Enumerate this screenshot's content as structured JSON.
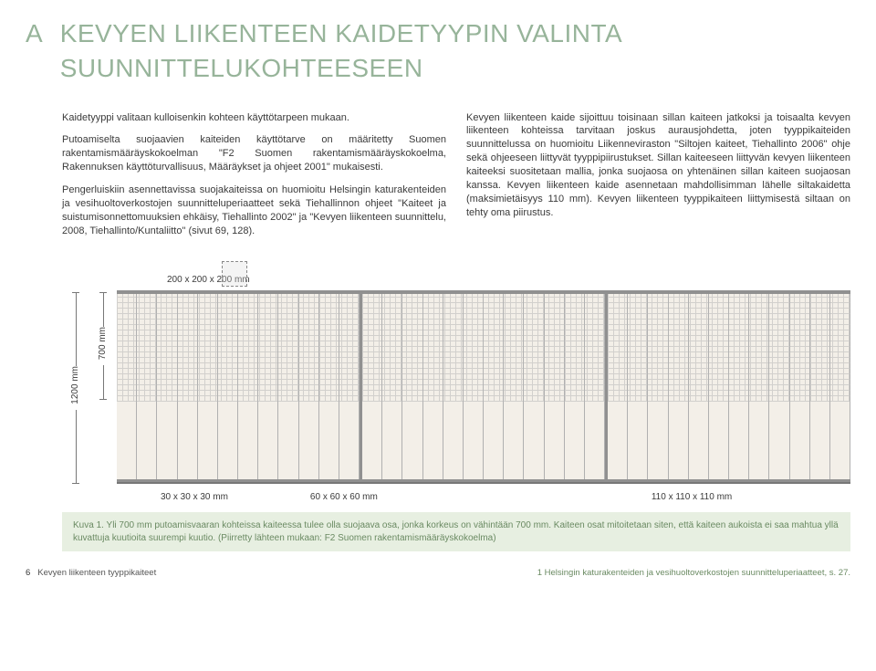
{
  "header": {
    "section_letter": "A",
    "title": "KEVYEN LIIKENTEEN KAIDETYYPIN VALINTA SUUNNITTELUKOHTEESEEN"
  },
  "body": {
    "left": {
      "p1": "Kaidetyyppi valitaan kulloisenkin kohteen käyttötarpeen mukaan.",
      "p2": "Putoamiselta suojaavien kaiteiden käyttötarve on määritetty Suomen rakentamismääräyskokoelman \"F2 Suomen rakentamismääräyskokoelma, Rakennuksen käyttöturvallisuus, Määräykset ja ohjeet 2001\" mukaisesti.",
      "p3": "Pengerluiskiin asennettavissa suojakaiteissa on huomioitu Helsingin katurakenteiden ja vesihuoltoverkostojen suunnitteluperiaatteet sekä Tiehallinnon ohjeet \"Kaiteet ja suistumisonnettomuuksien ehkäisy, Tiehallinto 2002\" ja \"Kevyen liikenteen suunnittelu, 2008, Tiehallinto/Kuntaliitto\" (sivut 69, 128)."
    },
    "right": {
      "p1": "Kevyen liikenteen kaide sijoittuu toisinaan sillan kaiteen jatkoksi ja toisaalta kevyen liikenteen kohteissa tarvitaan joskus aurausjohdetta, joten tyyppikaiteiden suunnittelussa on huomioitu Liikenneviraston \"Siltojen kaiteet, Tiehallinto 2006\" ohje sekä ohjeeseen liittyvät tyyppipiirustukset. Sillan kaiteeseen liittyvän kevyen liikenteen kaiteeksi suositetaan mallia, jonka suojaosa on yhtenäinen sillan kaiteen suojaosan kanssa. Kevyen liikenteen kaide asennetaan mahdollisimman lähelle siltakaidetta (maksimietäisyys 110 mm). Kevyen liikenteen tyyppikaiteen liittymisestä siltaan on tehty oma piirustus."
    }
  },
  "figure": {
    "top_label": "200 x 200 x 200 mm",
    "dim_left_outer": "1200 mm",
    "dim_left_inner": "700 mm",
    "bottom_labels": {
      "a": "30 x 30 x 30 mm",
      "b": "60 x 60 x 60 mm",
      "c": "110 x 110 x 110 mm"
    },
    "balusters_per_seg": 12,
    "segments": 3,
    "colors": {
      "rail": "#909090",
      "bg": "#f3efe8",
      "mesh": "#b8b8b8"
    }
  },
  "caption": {
    "label": "Kuva 1.",
    "text": "Yli 700 mm putoamisvaaran kohteissa kaiteessa tulee olla suojaava osa, jonka korkeus on vähintään 700 mm. Kaiteen osat mitoitetaan siten, että kaiteen aukoista ei saa mahtua yllä kuvattuja kuutioita suurempi kuutio. (Piirretty lähteen mukaan: F2 Suomen rakentamismääräyskokoelma)"
  },
  "footer": {
    "page": "6",
    "doc_title": "Kevyen liikenteen tyyppikaiteet",
    "source_note": "1 Helsingin katurakenteiden ja vesihuoltoverkostojen suunnitteluperiaatteet, s. 27."
  }
}
